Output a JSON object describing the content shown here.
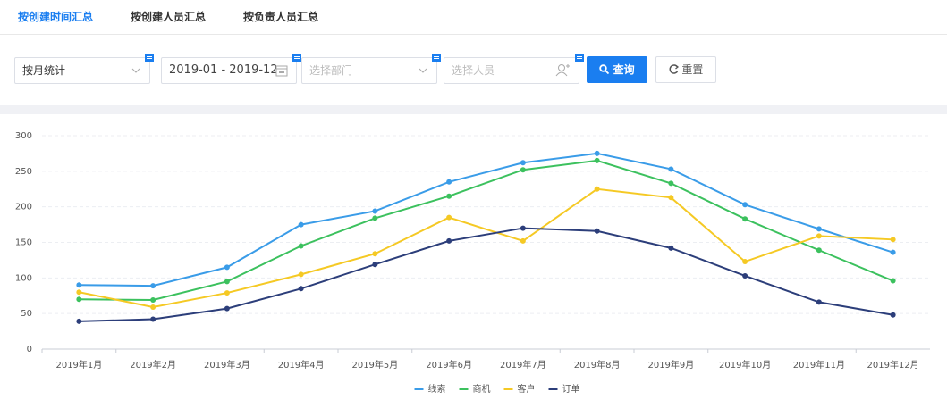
{
  "tabs": [
    "按创建时间汇总",
    "按创建人员汇总",
    "按负责人员汇总"
  ],
  "filters": {
    "period": "按月统计",
    "date_range": "2019-01 - 2019-12",
    "department_placeholder": "选择部门",
    "person_placeholder": "选择人员"
  },
  "buttons": {
    "search": "查询",
    "reset": "重置"
  },
  "chart_data": {
    "type": "line",
    "categories": [
      "2019年1月",
      "2019年2月",
      "2019年3月",
      "2019年4月",
      "2019年5月",
      "2019年6月",
      "2019年7月",
      "2019年8月",
      "2019年9月",
      "2019年10月",
      "2019年11月",
      "2019年12月"
    ],
    "series": [
      {
        "name": "线索",
        "color": "#3a9ce8",
        "values": [
          90,
          89,
          115,
          175,
          194,
          235,
          262,
          275,
          253,
          203,
          169,
          136
        ]
      },
      {
        "name": "商机",
        "color": "#3cc15e",
        "values": [
          70,
          69,
          95,
          145,
          184,
          215,
          252,
          265,
          233,
          183,
          139,
          96
        ]
      },
      {
        "name": "客户",
        "color": "#f5c924",
        "values": [
          80,
          59,
          79,
          105,
          134,
          185,
          152,
          225,
          213,
          123,
          159,
          154
        ]
      },
      {
        "name": "订单",
        "color": "#2c3e7a",
        "values": [
          39,
          42,
          57,
          85,
          119,
          152,
          170,
          166,
          142,
          103,
          66,
          48
        ]
      }
    ],
    "ylim": [
      0,
      300
    ],
    "yticks": [
      0,
      50,
      100,
      150,
      200,
      250,
      300
    ],
    "grid": true,
    "legend": "bottom"
  }
}
